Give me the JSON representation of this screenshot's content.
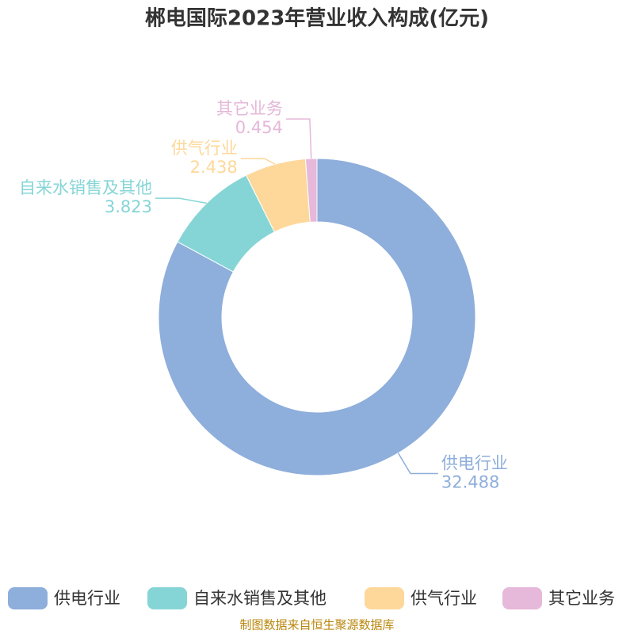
{
  "chart_data": {
    "type": "donut",
    "title": "郴电国际2023年营业收入构成(亿元)",
    "categories": [
      "供电行业",
      "自来水销售及其他",
      "供气行业",
      "其它业务"
    ],
    "values": [
      32.488,
      3.823,
      2.438,
      0.454
    ],
    "colors": [
      "#8eaedb",
      "#86d5d6",
      "#fdd89a",
      "#e6b8d9"
    ],
    "source": "制图数据来自恒生聚源数据库"
  }
}
